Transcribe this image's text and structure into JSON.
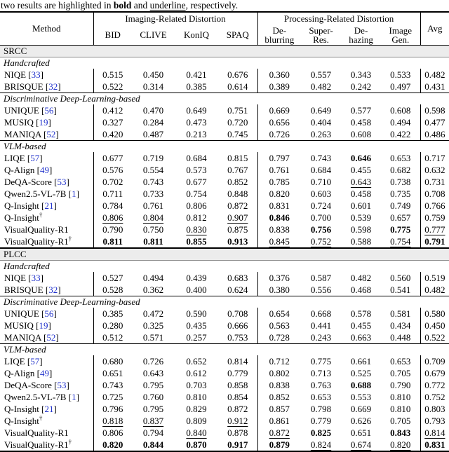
{
  "caption": {
    "prefix": "two results are highlighted in ",
    "bold_word": "bold",
    "and_text": " and ",
    "underline_word": "underline",
    "suffix": ", respectively."
  },
  "colors": {
    "citation_blue": "#2233cc",
    "section_band_gray": "#ececec",
    "rule_black": "#000000"
  },
  "header": {
    "method": "Method",
    "avg": "Avg",
    "groups": [
      {
        "label": "Imaging-Related Distortion"
      },
      {
        "label": "Processing-Related Distortion"
      }
    ],
    "imaging_cols": [
      "BID",
      "CLIVE",
      "KonIQ",
      "SPAQ"
    ],
    "processing_cols": [
      {
        "l1": "De-",
        "l2": "blurring"
      },
      {
        "l1": "Super-",
        "l2": "Res."
      },
      {
        "l1": "De-",
        "l2": "hazing"
      },
      {
        "l1": "Image",
        "l2": "Gen."
      }
    ]
  },
  "sections": [
    {
      "label": "SRCC",
      "groups": [
        {
          "label": "Handcrafted",
          "rows": [
            {
              "m": "NIQE",
              "ref": "33",
              "v": [
                "0.515",
                "0.450",
                "0.421",
                "0.676",
                "0.360",
                "0.557",
                "0.343",
                "0.533",
                "0.482"
              ]
            },
            {
              "m": "BRISQUE",
              "ref": "32",
              "v": [
                "0.522",
                "0.314",
                "0.385",
                "0.614",
                "0.389",
                "0.482",
                "0.242",
                "0.497",
                "0.431"
              ]
            }
          ]
        },
        {
          "label": "Discriminative Deep-Learning-based",
          "rows": [
            {
              "m": "UNIQUE",
              "ref": "56",
              "v": [
                "0.412",
                "0.470",
                "0.649",
                "0.751",
                "0.669",
                "0.649",
                "0.577",
                "0.608",
                "0.598"
              ]
            },
            {
              "m": "MUSIQ",
              "ref": "19",
              "v": [
                "0.327",
                "0.284",
                "0.473",
                "0.720",
                "0.656",
                "0.404",
                "0.458",
                "0.494",
                "0.477"
              ]
            },
            {
              "m": "MANIQA",
              "ref": "52",
              "v": [
                "0.420",
                "0.487",
                "0.213",
                "0.745",
                "0.726",
                "0.263",
                "0.608",
                "0.422",
                "0.486"
              ]
            }
          ]
        },
        {
          "label": "VLM-based",
          "rows": [
            {
              "m": "LIQE",
              "ref": "57",
              "v": [
                "0.677",
                "0.719",
                "0.684",
                "0.815",
                "0.797",
                "0.743",
                "0.646",
                "0.653",
                "0.717"
              ],
              "s": [
                "",
                "",
                "",
                "",
                "",
                "",
                "b",
                "",
                ""
              ]
            },
            {
              "m": "Q-Align",
              "ref": "49",
              "v": [
                "0.576",
                "0.554",
                "0.573",
                "0.767",
                "0.761",
                "0.684",
                "0.455",
                "0.682",
                "0.632"
              ]
            },
            {
              "m": "DeQA-Score",
              "ref": "53",
              "v": [
                "0.702",
                "0.743",
                "0.677",
                "0.852",
                "0.785",
                "0.710",
                "0.643",
                "0.738",
                "0.731"
              ],
              "s": [
                "",
                "",
                "",
                "",
                "",
                "",
                "u",
                "",
                ""
              ]
            },
            {
              "m": "Qwen2.5-VL-7B",
              "ref": "1",
              "v": [
                "0.711",
                "0.733",
                "0.754",
                "0.848",
                "0.820",
                "0.603",
                "0.458",
                "0.735",
                "0.708"
              ]
            },
            {
              "m": "Q-Insight",
              "ref": "21",
              "v": [
                "0.784",
                "0.761",
                "0.806",
                "0.872",
                "0.831",
                "0.724",
                "0.601",
                "0.749",
                "0.766"
              ]
            },
            {
              "m": "Q-Insight",
              "dagger": true,
              "v": [
                "0.806",
                "0.804",
                "0.812",
                "0.907",
                "0.846",
                "0.700",
                "0.539",
                "0.657",
                "0.759"
              ],
              "s": [
                "u",
                "u",
                "",
                "u",
                "b",
                "",
                "",
                "",
                ""
              ]
            },
            {
              "m": "VisualQuality-R1",
              "v": [
                "0.790",
                "0.750",
                "0.830",
                "0.875",
                "0.838",
                "0.756",
                "0.598",
                "0.775",
                "0.777"
              ],
              "s": [
                "",
                "",
                "u",
                "",
                "",
                "b",
                "",
                "b",
                "u"
              ]
            },
            {
              "m": "VisualQuality-R1",
              "dagger": true,
              "v": [
                "0.811",
                "0.811",
                "0.855",
                "0.913",
                "0.845",
                "0.752",
                "0.588",
                "0.754",
                "0.791"
              ],
              "s": [
                "b",
                "b",
                "b",
                "b",
                "u",
                "u",
                "",
                "u",
                "b"
              ]
            }
          ]
        }
      ]
    },
    {
      "label": "PLCC",
      "groups": [
        {
          "label": "Handcrafted",
          "rows": [
            {
              "m": "NIQE",
              "ref": "33",
              "v": [
                "0.527",
                "0.494",
                "0.439",
                "0.683",
                "0.376",
                "0.587",
                "0.482",
                "0.560",
                "0.519"
              ]
            },
            {
              "m": "BRISQUE",
              "ref": "32",
              "v": [
                "0.528",
                "0.362",
                "0.400",
                "0.624",
                "0.380",
                "0.556",
                "0.468",
                "0.541",
                "0.482"
              ]
            }
          ]
        },
        {
          "label": "Discriminative Deep-Learning-based",
          "rows": [
            {
              "m": "UNIQUE",
              "ref": "56",
              "v": [
                "0.385",
                "0.472",
                "0.590",
                "0.708",
                "0.654",
                "0.668",
                "0.578",
                "0.581",
                "0.580"
              ]
            },
            {
              "m": "MUSIQ",
              "ref": "19",
              "v": [
                "0.280",
                "0.325",
                "0.435",
                "0.666",
                "0.563",
                "0.441",
                "0.455",
                "0.434",
                "0.450"
              ]
            },
            {
              "m": "MANIQA",
              "ref": "52",
              "v": [
                "0.512",
                "0.571",
                "0.257",
                "0.753",
                "0.728",
                "0.243",
                "0.663",
                "0.448",
                "0.522"
              ]
            }
          ]
        },
        {
          "label": "VLM-based",
          "rows": [
            {
              "m": "LIQE",
              "ref": "57",
              "v": [
                "0.680",
                "0.726",
                "0.652",
                "0.814",
                "0.712",
                "0.775",
                "0.661",
                "0.653",
                "0.709"
              ]
            },
            {
              "m": "Q-Align",
              "ref": "49",
              "v": [
                "0.651",
                "0.643",
                "0.612",
                "0.779",
                "0.802",
                "0.713",
                "0.525",
                "0.705",
                "0.679"
              ]
            },
            {
              "m": "DeQA-Score",
              "ref": "53",
              "v": [
                "0.743",
                "0.795",
                "0.703",
                "0.858",
                "0.838",
                "0.763",
                "0.688",
                "0.790",
                "0.772"
              ],
              "s": [
                "",
                "",
                "",
                "",
                "",
                "",
                "b",
                "",
                ""
              ]
            },
            {
              "m": "Qwen2.5-VL-7B",
              "ref": "1",
              "v": [
                "0.725",
                "0.760",
                "0.810",
                "0.854",
                "0.852",
                "0.653",
                "0.553",
                "0.810",
                "0.752"
              ]
            },
            {
              "m": "Q-Insight",
              "ref": "21",
              "v": [
                "0.796",
                "0.795",
                "0.829",
                "0.872",
                "0.857",
                "0.798",
                "0.669",
                "0.810",
                "0.803"
              ]
            },
            {
              "m": "Q-Insight",
              "dagger": true,
              "v": [
                "0.818",
                "0.837",
                "0.809",
                "0.912",
                "0.861",
                "0.779",
                "0.626",
                "0.705",
                "0.793"
              ],
              "s": [
                "u",
                "u",
                "",
                "u",
                "",
                "",
                "",
                "",
                ""
              ]
            },
            {
              "m": "VisualQuality-R1",
              "v": [
                "0.806",
                "0.794",
                "0.840",
                "0.878",
                "0.872",
                "0.825",
                "0.651",
                "0.843",
                "0.814"
              ],
              "s": [
                "",
                "",
                "u",
                "",
                "u",
                "b",
                "",
                "b",
                "u"
              ]
            },
            {
              "m": "VisualQuality-R1",
              "dagger": true,
              "v": [
                "0.820",
                "0.844",
                "0.870",
                "0.917",
                "0.879",
                "0.824",
                "0.674",
                "0.820",
                "0.831"
              ],
              "s": [
                "b",
                "b",
                "b",
                "b",
                "b",
                "u",
                "u",
                "u",
                "b"
              ]
            }
          ]
        }
      ]
    }
  ]
}
